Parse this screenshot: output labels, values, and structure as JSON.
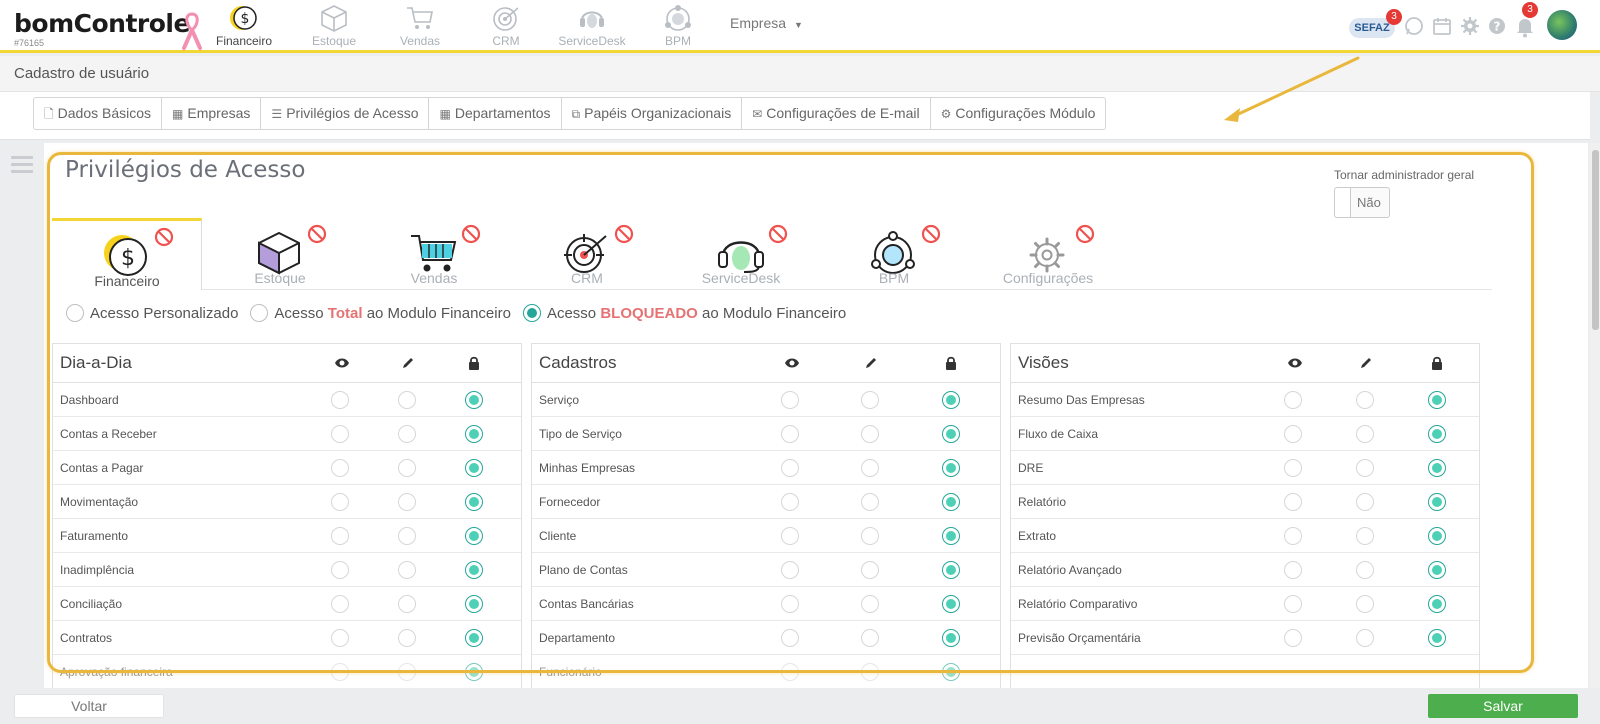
{
  "header": {
    "logo": "bomControle",
    "account_id": "#76165",
    "modules": [
      {
        "label": "Financeiro",
        "icon": "dollar-coin-icon",
        "active": true
      },
      {
        "label": "Estoque",
        "icon": "box-icon"
      },
      {
        "label": "Vendas",
        "icon": "cart-icon"
      },
      {
        "label": "CRM",
        "icon": "target-icon"
      },
      {
        "label": "ServiceDesk",
        "icon": "headset-icon"
      },
      {
        "label": "BPM",
        "icon": "network-icon"
      }
    ],
    "company_select": "Empresa",
    "sefaz": "SEFAZ",
    "sefaz_badge": "3",
    "notifications_badge": "3"
  },
  "page": {
    "title": "Cadastro de usuário",
    "tabs": [
      {
        "label": "Dados Básicos",
        "icon": "file-icon"
      },
      {
        "label": "Empresas",
        "icon": "building-icon"
      },
      {
        "label": "Privilégios de Acesso",
        "icon": "list-icon"
      },
      {
        "label": "Departamentos",
        "icon": "building-icon"
      },
      {
        "label": "Papéis Organizacionais",
        "icon": "sitemap-icon"
      },
      {
        "label": "Configurações de E-mail",
        "icon": "envelope-icon"
      },
      {
        "label": "Configurações Módulo",
        "icon": "gear-icon"
      }
    ]
  },
  "section": {
    "title": "Privilégios de Acesso",
    "admin_label": "Tornar administrador geral",
    "admin_value": "Não"
  },
  "module_tabs": [
    {
      "label": "Financeiro",
      "active": true
    },
    {
      "label": "Estoque"
    },
    {
      "label": "Vendas"
    },
    {
      "label": "CRM"
    },
    {
      "label": "ServiceDesk"
    },
    {
      "label": "BPM"
    },
    {
      "label": "Configurações"
    }
  ],
  "access": {
    "personalizado": "Acesso Personalizado",
    "total_prefix": "Acesso",
    "total_hl": "Total",
    "total_suffix": "ao Modulo Financeiro",
    "bloq_prefix": "Acesso",
    "bloq_hl": "BLOQUEADO",
    "bloq_suffix": "ao Modulo Financeiro",
    "selected": "bloqueado"
  },
  "tables": [
    {
      "title": "Dia-a-Dia",
      "rows": [
        "Dashboard",
        "Contas a Receber",
        "Contas a Pagar",
        "Movimentação",
        "Faturamento",
        "Inadimplência",
        "Conciliação",
        "Contratos",
        "Aprovação financeira"
      ]
    },
    {
      "title": "Cadastros",
      "rows": [
        "Serviço",
        "Tipo de Serviço",
        "Minhas Empresas",
        "Fornecedor",
        "Cliente",
        "Plano de Contas",
        "Contas Bancárias",
        "Departamento",
        "Funcionário"
      ]
    },
    {
      "title": "Visões",
      "rows": [
        "Resumo Das Empresas",
        "Fluxo de Caixa",
        "DRE",
        "Relatório",
        "Extrato",
        "Relatório Avançado",
        "Relatório Comparativo",
        "Previsão Orçamentária"
      ]
    }
  ],
  "footer": {
    "back": "Voltar",
    "save": "Salvar"
  },
  "colors": {
    "accent_yellow": "#f2d635",
    "radio_teal": "#26a69a",
    "save_green": "#4cae4c",
    "highlight": "#e8b73c"
  }
}
